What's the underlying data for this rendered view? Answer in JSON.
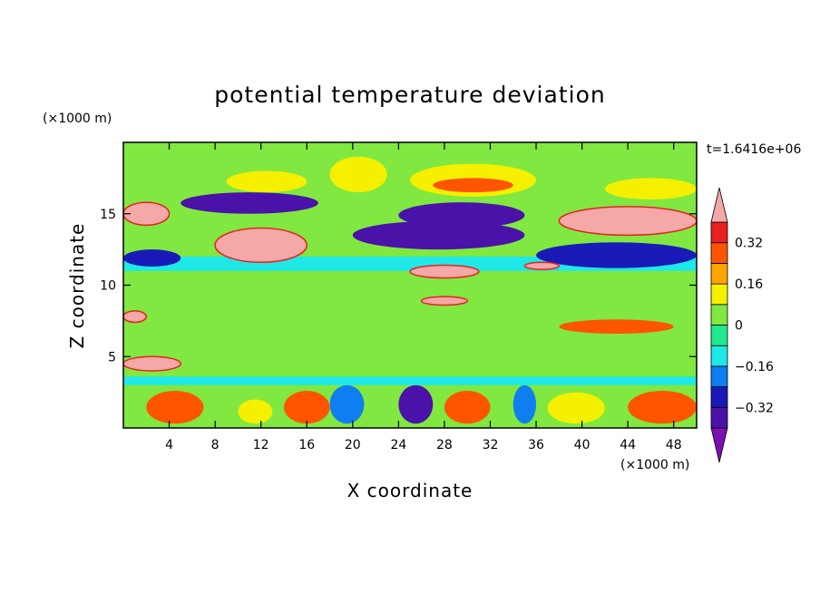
{
  "chart_data": {
    "type": "heatmap",
    "title": "potential temperature deviation",
    "xlabel": "X coordinate",
    "ylabel": "Z coordinate",
    "x_unit": "(×1000 m)",
    "y_unit": "(×1000 m)",
    "time_label": "t=1.6416e+06",
    "xlim": [
      0,
      50
    ],
    "ylim": [
      0,
      20
    ],
    "x_ticks": [
      4,
      8,
      12,
      16,
      20,
      24,
      28,
      32,
      36,
      40,
      44,
      48
    ],
    "y_ticks": [
      5,
      10,
      15
    ],
    "colorbar": {
      "levels": [
        -0.4,
        -0.32,
        -0.24,
        -0.16,
        -0.08,
        0,
        0.08,
        0.16,
        0.24,
        0.32,
        0.4
      ],
      "labels": [
        "0.32",
        "0.16",
        "0",
        "−0.16",
        "−0.32"
      ],
      "label_values": [
        0.32,
        0.16,
        0,
        -0.16,
        -0.32
      ],
      "colors": [
        "#7b10b0",
        "#4a12a8",
        "#1a1ab8",
        "#0f7ef0",
        "#1fe8e8",
        "#22e890",
        "#80e840",
        "#f5f000",
        "#ffa500",
        "#ff5500",
        "#e82020",
        "#f5a8a8"
      ],
      "extend": "both"
    },
    "regions": [
      {
        "x": [
          0,
          50
        ],
        "z": [
          0,
          20
        ],
        "value": 0.02
      },
      {
        "x": [
          0,
          50
        ],
        "z": [
          9,
          11
        ],
        "value": 0.06
      },
      {
        "x": [
          0,
          50
        ],
        "z": [
          6,
          9
        ],
        "value": 0.03
      },
      {
        "x": [
          0,
          50
        ],
        "z": [
          11,
          12
        ],
        "value": -0.12
      },
      {
        "x": [
          0,
          50
        ],
        "z": [
          3.5,
          5.5
        ],
        "value": 0.05
      },
      {
        "x": [
          18,
          23
        ],
        "z": [
          16.5,
          19
        ],
        "value": 0.12
      },
      {
        "x": [
          25,
          36
        ],
        "z": [
          16.2,
          18.5
        ],
        "value": 0.1
      },
      {
        "x": [
          27,
          34
        ],
        "z": [
          16.5,
          17.5
        ],
        "value": 0.26
      },
      {
        "x": [
          9,
          16
        ],
        "z": [
          16.5,
          18
        ],
        "value": 0.14
      },
      {
        "x": [
          42,
          50
        ],
        "z": [
          16,
          17.5
        ],
        "value": 0.14
      },
      {
        "x": [
          5,
          17
        ],
        "z": [
          15,
          16.5
        ],
        "value": -0.38
      },
      {
        "x": [
          24,
          35
        ],
        "z": [
          14,
          15.8
        ],
        "value": -0.4
      },
      {
        "x": [
          20,
          35
        ],
        "z": [
          12.5,
          14.5
        ],
        "value": -0.33
      },
      {
        "x": [
          36,
          50
        ],
        "z": [
          11.2,
          13
        ],
        "value": -0.3
      },
      {
        "x": [
          0,
          5
        ],
        "z": [
          11.3,
          12.5
        ],
        "value": -0.3
      },
      {
        "x": [
          0,
          4
        ],
        "z": [
          14.2,
          15.8
        ],
        "value": 0.5
      },
      {
        "x": [
          8,
          16
        ],
        "z": [
          11.6,
          14
        ],
        "value": 0.5
      },
      {
        "x": [
          38,
          50
        ],
        "z": [
          13.5,
          15.5
        ],
        "value": 0.5
      },
      {
        "x": [
          25,
          31
        ],
        "z": [
          10.5,
          11.4
        ],
        "value": 0.5
      },
      {
        "x": [
          35,
          38
        ],
        "z": [
          11.1,
          11.6
        ],
        "value": 0.5
      },
      {
        "x": [
          26,
          30
        ],
        "z": [
          8.6,
          9.2
        ],
        "value": 0.5
      },
      {
        "x": [
          0,
          2
        ],
        "z": [
          7.4,
          8.2
        ],
        "value": 0.5
      },
      {
        "x": [
          0,
          5
        ],
        "z": [
          4,
          5
        ],
        "value": 0.5
      },
      {
        "x": [
          38,
          48
        ],
        "z": [
          6.6,
          7.6
        ],
        "value": 0.3
      },
      {
        "x": [
          2,
          7
        ],
        "z": [
          0.3,
          2.6
        ],
        "value": 0.26
      },
      {
        "x": [
          14,
          18
        ],
        "z": [
          0.3,
          2.6
        ],
        "value": 0.3
      },
      {
        "x": [
          28,
          32
        ],
        "z": [
          0.3,
          2.6
        ],
        "value": 0.3
      },
      {
        "x": [
          44,
          50
        ],
        "z": [
          0.3,
          2.6
        ],
        "value": 0.24
      },
      {
        "x": [
          18,
          21
        ],
        "z": [
          0.3,
          3
        ],
        "value": -0.2
      },
      {
        "x": [
          24,
          27
        ],
        "z": [
          0.3,
          3
        ],
        "value": -0.35
      },
      {
        "x": [
          34,
          36
        ],
        "z": [
          0.3,
          3
        ],
        "value": -0.2
      },
      {
        "x": [
          10,
          13
        ],
        "z": [
          0.3,
          2
        ],
        "value": 0.14
      },
      {
        "x": [
          37,
          42
        ],
        "z": [
          0.3,
          2.5
        ],
        "value": 0.1
      },
      {
        "x": [
          0,
          50
        ],
        "z": [
          3,
          3.6
        ],
        "value": -0.12
      }
    ]
  }
}
